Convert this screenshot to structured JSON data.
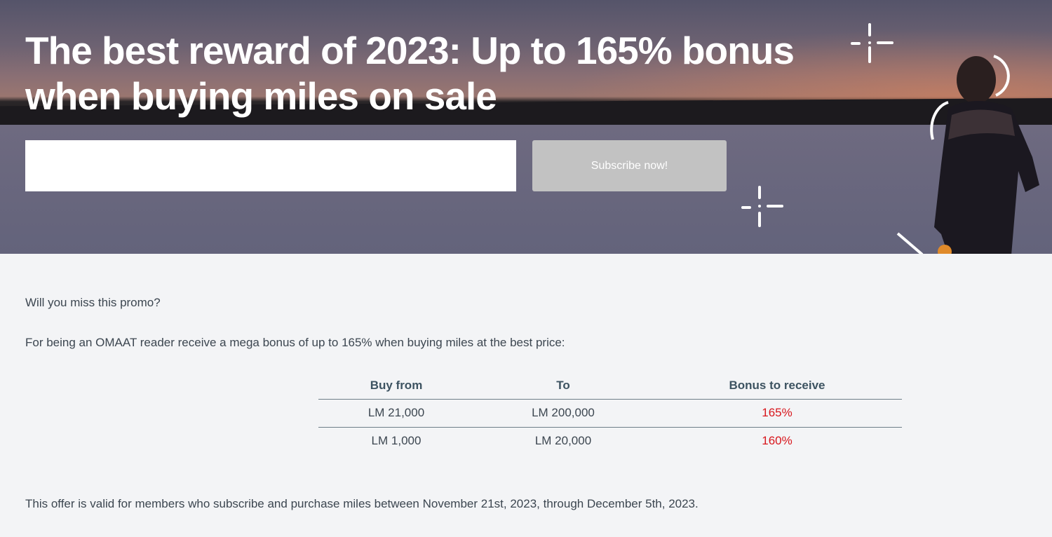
{
  "hero": {
    "title": "The best reward of 2023: Up to 165% bonus when buying miles on sale",
    "email_value": "",
    "subscribe_label": "Subscribe now!"
  },
  "body": {
    "intro": "Will you miss this promo?",
    "lead": "For being an OMAAT reader receive a mega bonus of up to 165% when buying miles at the best price:",
    "table": {
      "headers": [
        "Buy from",
        "To",
        "Bonus to receive"
      ],
      "rows": [
        [
          "LM 21,000",
          "LM 200,000",
          "165%"
        ],
        [
          "LM 1,000",
          "LM 20,000",
          "160%"
        ]
      ]
    },
    "footer": "This offer is valid for members who subscribe and purchase miles between November 21st, 2023, through December 5th, 2023."
  },
  "colors": {
    "bonus": "#d8161c",
    "header": "#3d5361",
    "button": "#c2c2c2"
  }
}
